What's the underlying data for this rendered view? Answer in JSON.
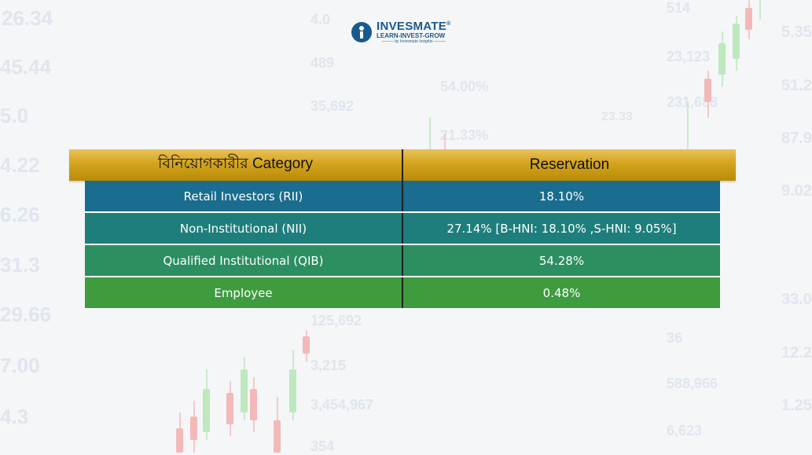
{
  "background": {
    "numbers": [
      "26.34",
      "45.44",
      "5.0",
      "4.22",
      "6.26",
      "31.3",
      "29.66",
      "7.00",
      "4.3",
      "489",
      "35,692",
      "54.00%",
      "21.33%",
      "23,123",
      "231,688",
      "125,692",
      "3,215",
      "3,454,967",
      "354",
      "5.35",
      "51.2",
      "87.9",
      "9.02",
      "33.0",
      "12.2",
      "1.25",
      "588,966",
      "6,623",
      "36",
      "23.33",
      "4.0",
      "514"
    ]
  },
  "logo": {
    "name": "INVESMATE",
    "registered": "®",
    "tagline": "LEARN-INVEST-GROW",
    "byline": "——— by Invesmate Insights ———"
  },
  "table": {
    "headers": [
      "বিনিয়োগকারীর Category",
      "Reservation"
    ],
    "rows": [
      {
        "category": "Retail Investors (RII)",
        "reservation": "18.10%",
        "color": "#1a6d8e"
      },
      {
        "category": "Non-Institutional (NII)",
        "reservation": "27.14% [B-HNI: 18.10%  ,S-HNI: 9.05%]",
        "color": "#1e7e7c"
      },
      {
        "category": "Qualified Institutional (QIB)",
        "reservation": "54.28%",
        "color": "#2b8f5f"
      },
      {
        "category": "Employee",
        "reservation": "0.48%",
        "color": "#3e9c3f"
      }
    ]
  },
  "colors": {
    "header_gold": "#d4a41d",
    "brand_blue": "#1a5a8a"
  }
}
